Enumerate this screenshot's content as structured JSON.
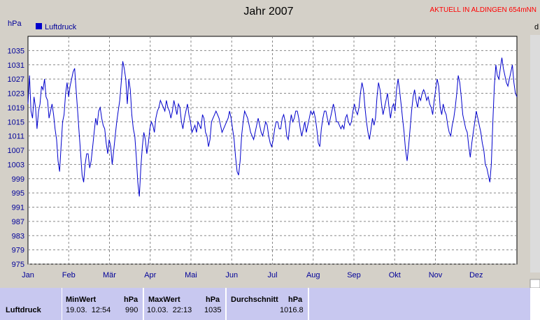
{
  "chart_data": {
    "type": "line",
    "title": "Jahr 2007",
    "station": "AKTUELL IN ALDINGEN 654mNN",
    "ylabel": "hPa",
    "edge_letter": "d",
    "ylim": [
      975,
      1039
    ],
    "yticks": [
      975,
      979,
      983,
      987,
      991,
      995,
      999,
      1003,
      1007,
      1011,
      1015,
      1019,
      1023,
      1027,
      1031,
      1035
    ],
    "xlabels": [
      "Jan",
      "Feb",
      "Mär",
      "Apr",
      "Mai",
      "Jun",
      "Jul",
      "Aug",
      "Sep",
      "Okt",
      "Nov",
      "Dez"
    ],
    "grid": true,
    "legend": "top-left",
    "series": [
      {
        "name": "Luftdruck",
        "color": "#0000cc",
        "values": [
          1020,
          1028,
          1018,
          1016,
          1022,
          1019,
          1013,
          1018,
          1020,
          1025,
          1024,
          1027,
          1022,
          1021,
          1016,
          1018,
          1020,
          1017,
          1013,
          1010,
          1004,
          1001,
          1008,
          1015,
          1017,
          1023,
          1026,
          1022,
          1025,
          1027,
          1029,
          1030,
          1024,
          1018,
          1012,
          1006,
          1000,
          998,
          1003,
          1006,
          1006,
          1002,
          1004,
          1008,
          1012,
          1016,
          1014,
          1018,
          1019,
          1016,
          1014,
          1013,
          1009,
          1006,
          1010,
          1008,
          1003,
          1007,
          1011,
          1015,
          1018,
          1021,
          1026,
          1032,
          1030,
          1027,
          1020,
          1027,
          1024,
          1017,
          1013,
          1011,
          1005,
          998,
          994,
          1002,
          1008,
          1012,
          1010,
          1006,
          1009,
          1013,
          1015,
          1014,
          1012,
          1016,
          1018,
          1019,
          1021,
          1020,
          1019,
          1018,
          1021,
          1019,
          1018,
          1016,
          1018,
          1021,
          1019,
          1017,
          1020,
          1019,
          1015,
          1013,
          1016,
          1018,
          1020,
          1017,
          1015,
          1012,
          1013,
          1014,
          1012,
          1015,
          1014,
          1013,
          1017,
          1016,
          1012,
          1011,
          1008,
          1010,
          1015,
          1016,
          1017,
          1018,
          1017,
          1016,
          1014,
          1012,
          1013,
          1014,
          1015,
          1016,
          1018,
          1016,
          1013,
          1010,
          1005,
          1001,
          1000,
          1004,
          1011,
          1015,
          1018,
          1017,
          1016,
          1014,
          1012,
          1011,
          1010,
          1012,
          1014,
          1016,
          1014,
          1012,
          1011,
          1013,
          1015,
          1014,
          1011,
          1009,
          1008,
          1010,
          1013,
          1015,
          1015,
          1013,
          1013,
          1016,
          1017,
          1015,
          1011,
          1010,
          1014,
          1017,
          1015,
          1016,
          1018,
          1018,
          1016,
          1013,
          1011,
          1013,
          1015,
          1012,
          1014,
          1016,
          1018,
          1017,
          1018,
          1016,
          1013,
          1009,
          1008,
          1013,
          1016,
          1018,
          1018,
          1016,
          1014,
          1016,
          1018,
          1020,
          1018,
          1015,
          1015,
          1014,
          1013,
          1014,
          1013,
          1016,
          1017,
          1015,
          1014,
          1015,
          1018,
          1020,
          1018,
          1017,
          1019,
          1023,
          1026,
          1024,
          1019,
          1015,
          1012,
          1010,
          1013,
          1016,
          1014,
          1016,
          1022,
          1026,
          1024,
          1020,
          1017,
          1019,
          1021,
          1023,
          1019,
          1016,
          1019,
          1020,
          1018,
          1024,
          1027,
          1024,
          1020,
          1016,
          1012,
          1007,
          1004,
          1008,
          1013,
          1018,
          1022,
          1024,
          1021,
          1019,
          1022,
          1021,
          1023,
          1024,
          1023,
          1021,
          1022,
          1020,
          1019,
          1017,
          1021,
          1024,
          1027,
          1025,
          1019,
          1017,
          1020,
          1018,
          1017,
          1014,
          1012,
          1011,
          1014,
          1016,
          1019,
          1023,
          1028,
          1026,
          1022,
          1017,
          1015,
          1013,
          1012,
          1008,
          1005,
          1009,
          1012,
          1015,
          1018,
          1016,
          1014,
          1012,
          1009,
          1007,
          1003,
          1002,
          1000,
          998,
          1003,
          1015,
          1025,
          1031,
          1028,
          1027,
          1030,
          1033,
          1030,
          1028,
          1026,
          1025,
          1027,
          1029,
          1031,
          1026,
          1023,
          1022
        ]
      }
    ]
  },
  "stats": {
    "row_label": "Luftdruck",
    "min": {
      "header": "MinWert",
      "unit": "hPa",
      "datetime": "19.03.  12:54",
      "value": "990"
    },
    "max": {
      "header": "MaxWert",
      "unit": "hPa",
      "datetime": "10.03.  22:13",
      "value": "1035"
    },
    "avg": {
      "header": "Durchschnitt",
      "unit": "hPa",
      "value": "1016.8"
    }
  }
}
